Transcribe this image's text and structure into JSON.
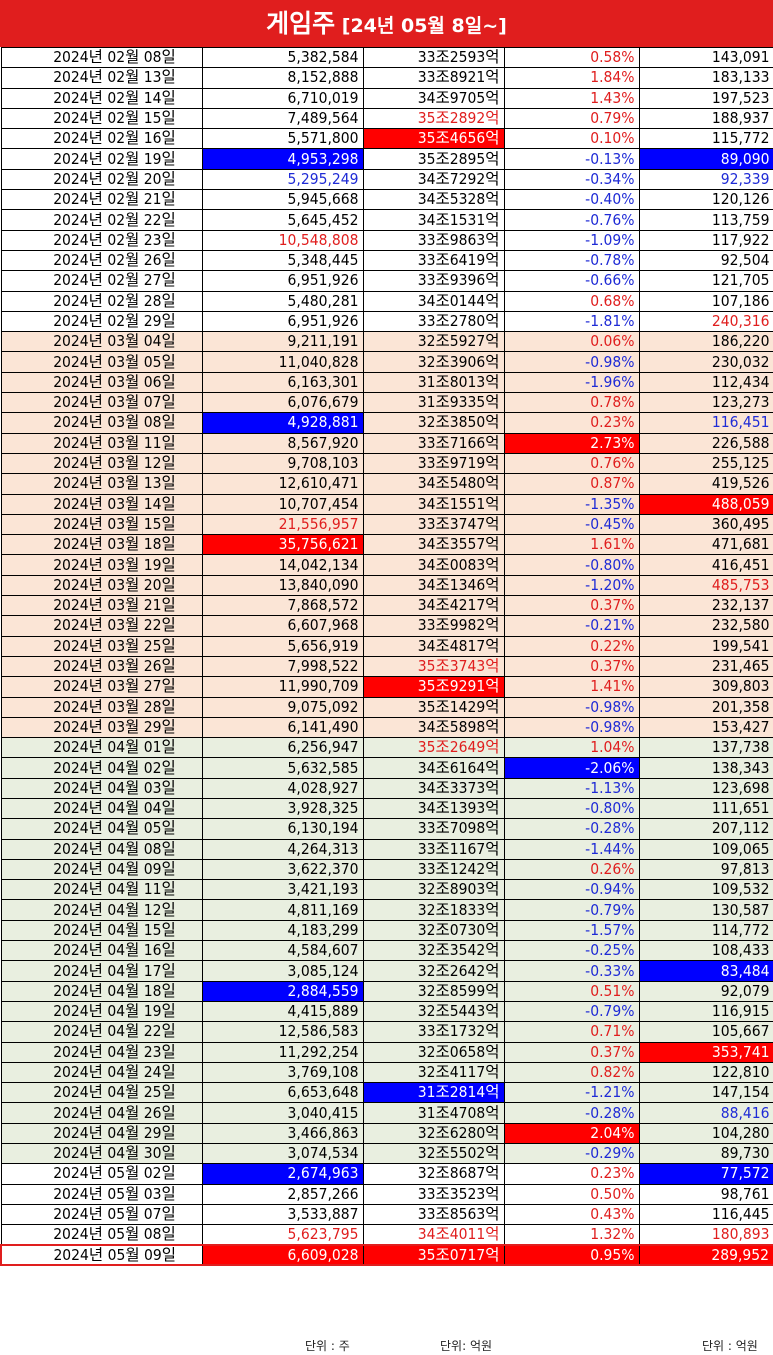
{
  "header": {
    "title_main": "게임주",
    "title_sub": " [24년 05월 8일~]"
  },
  "rows": [
    {
      "date": "2024년 02월 08일",
      "vol": "5,382,584",
      "cap": "33조2593억",
      "chg": "0.58%",
      "amt": "143,091",
      "m": "feb",
      "vc": "",
      "cc": "",
      "gc": "t-red",
      "ac": ""
    },
    {
      "date": "2024년 02월 13일",
      "vol": "8,152,888",
      "cap": "33조8921억",
      "chg": "1.84%",
      "amt": "183,133",
      "m": "feb",
      "vc": "",
      "cc": "",
      "gc": "t-red",
      "ac": ""
    },
    {
      "date": "2024년 02월 14일",
      "vol": "6,710,019",
      "cap": "34조9705억",
      "chg": "1.43%",
      "amt": "197,523",
      "m": "feb",
      "vc": "",
      "cc": "",
      "gc": "t-red",
      "ac": ""
    },
    {
      "date": "2024년 02월 15일",
      "vol": "7,489,564",
      "cap": "35조2892억",
      "chg": "0.79%",
      "amt": "188,937",
      "m": "feb",
      "vc": "",
      "cc": "t-red",
      "gc": "t-red",
      "ac": ""
    },
    {
      "date": "2024년 02월 16일",
      "vol": "5,571,800",
      "cap": "35조4656억",
      "chg": "0.10%",
      "amt": "115,772",
      "m": "feb",
      "vc": "",
      "cc": "bg-red",
      "gc": "t-red",
      "ac": ""
    },
    {
      "date": "2024년 02월 19일",
      "vol": "4,953,298",
      "cap": "35조2895억",
      "chg": "-0.13%",
      "amt": "89,090",
      "m": "feb",
      "vc": "bg-blue",
      "cc": "",
      "gc": "t-blue",
      "ac": "bg-blue"
    },
    {
      "date": "2024년 02월 20일",
      "vol": "5,295,249",
      "cap": "34조7292억",
      "chg": "-0.34%",
      "amt": "92,339",
      "m": "feb",
      "vc": "t-blue",
      "cc": "",
      "gc": "t-blue",
      "ac": "t-blue"
    },
    {
      "date": "2024년 02월 21일",
      "vol": "5,945,668",
      "cap": "34조5328억",
      "chg": "-0.40%",
      "amt": "120,126",
      "m": "feb",
      "vc": "",
      "cc": "",
      "gc": "t-blue",
      "ac": ""
    },
    {
      "date": "2024년 02월 22일",
      "vol": "5,645,452",
      "cap": "34조1531억",
      "chg": "-0.76%",
      "amt": "113,759",
      "m": "feb",
      "vc": "",
      "cc": "",
      "gc": "t-blue",
      "ac": ""
    },
    {
      "date": "2024년 02월 23일",
      "vol": "10,548,808",
      "cap": "33조9863억",
      "chg": "-1.09%",
      "amt": "117,922",
      "m": "feb",
      "vc": "t-red",
      "cc": "",
      "gc": "t-blue",
      "ac": ""
    },
    {
      "date": "2024년 02월 26일",
      "vol": "5,348,445",
      "cap": "33조6419억",
      "chg": "-0.78%",
      "amt": "92,504",
      "m": "feb",
      "vc": "",
      "cc": "",
      "gc": "t-blue",
      "ac": ""
    },
    {
      "date": "2024년 02월 27일",
      "vol": "6,951,926",
      "cap": "33조9396억",
      "chg": "-0.66%",
      "amt": "121,705",
      "m": "feb",
      "vc": "",
      "cc": "",
      "gc": "t-blue",
      "ac": ""
    },
    {
      "date": "2024년 02월 28일",
      "vol": "5,480,281",
      "cap": "34조0144억",
      "chg": "0.68%",
      "amt": "107,186",
      "m": "feb",
      "vc": "",
      "cc": "",
      "gc": "t-red",
      "ac": ""
    },
    {
      "date": "2024년 02월 29일",
      "vol": "6,951,926",
      "cap": "33조2780억",
      "chg": "-1.81%",
      "amt": "240,316",
      "m": "feb",
      "vc": "",
      "cc": "",
      "gc": "t-blue",
      "ac": "t-red"
    },
    {
      "date": "2024년 03월 04일",
      "vol": "9,211,191",
      "cap": "32조5927억",
      "chg": "0.06%",
      "amt": "186,220",
      "m": "mar",
      "vc": "",
      "cc": "",
      "gc": "t-red",
      "ac": ""
    },
    {
      "date": "2024년 03월 05일",
      "vol": "11,040,828",
      "cap": "32조3906억",
      "chg": "-0.98%",
      "amt": "230,032",
      "m": "mar",
      "vc": "",
      "cc": "",
      "gc": "t-blue",
      "ac": ""
    },
    {
      "date": "2024년 03월 06일",
      "vol": "6,163,301",
      "cap": "31조8013억",
      "chg": "-1.96%",
      "amt": "112,434",
      "m": "mar",
      "vc": "",
      "cc": "",
      "gc": "t-blue",
      "ac": ""
    },
    {
      "date": "2024년 03월 07일",
      "vol": "6,076,679",
      "cap": "31조9335억",
      "chg": "0.78%",
      "amt": "123,273",
      "m": "mar",
      "vc": "",
      "cc": "",
      "gc": "t-red",
      "ac": ""
    },
    {
      "date": "2024년 03월 08일",
      "vol": "4,928,881",
      "cap": "32조3850억",
      "chg": "0.23%",
      "amt": "116,451",
      "m": "mar",
      "vc": "bg-blue",
      "cc": "",
      "gc": "t-red",
      "ac": "t-blue"
    },
    {
      "date": "2024년 03월 11일",
      "vol": "8,567,920",
      "cap": "33조7166억",
      "chg": "2.73%",
      "amt": "226,588",
      "m": "mar",
      "vc": "",
      "cc": "",
      "gc": "bg-red",
      "ac": ""
    },
    {
      "date": "2024년 03월 12일",
      "vol": "9,708,103",
      "cap": "33조9719억",
      "chg": "0.76%",
      "amt": "255,125",
      "m": "mar",
      "vc": "",
      "cc": "",
      "gc": "t-red",
      "ac": ""
    },
    {
      "date": "2024년 03월 13일",
      "vol": "12,610,471",
      "cap": "34조5480억",
      "chg": "0.87%",
      "amt": "419,526",
      "m": "mar",
      "vc": "",
      "cc": "",
      "gc": "t-red",
      "ac": ""
    },
    {
      "date": "2024년 03월 14일",
      "vol": "10,707,454",
      "cap": "34조1551억",
      "chg": "-1.35%",
      "amt": "488,059",
      "m": "mar",
      "vc": "",
      "cc": "",
      "gc": "t-blue",
      "ac": "bg-red"
    },
    {
      "date": "2024년 03월 15일",
      "vol": "21,556,957",
      "cap": "33조3747억",
      "chg": "-0.45%",
      "amt": "360,495",
      "m": "mar",
      "vc": "t-red",
      "cc": "",
      "gc": "t-blue",
      "ac": ""
    },
    {
      "date": "2024년 03월 18일",
      "vol": "35,756,621",
      "cap": "34조3557억",
      "chg": "1.61%",
      "amt": "471,681",
      "m": "mar",
      "vc": "bg-red",
      "cc": "",
      "gc": "t-red",
      "ac": ""
    },
    {
      "date": "2024년 03월 19일",
      "vol": "14,042,134",
      "cap": "34조0083억",
      "chg": "-0.80%",
      "amt": "416,451",
      "m": "mar",
      "vc": "",
      "cc": "",
      "gc": "t-blue",
      "ac": ""
    },
    {
      "date": "2024년 03월 20일",
      "vol": "13,840,090",
      "cap": "34조1346억",
      "chg": "-1.20%",
      "amt": "485,753",
      "m": "mar",
      "vc": "",
      "cc": "",
      "gc": "t-blue",
      "ac": "t-red"
    },
    {
      "date": "2024년 03월 21일",
      "vol": "7,868,572",
      "cap": "34조4217억",
      "chg": "0.37%",
      "amt": "232,137",
      "m": "mar",
      "vc": "",
      "cc": "",
      "gc": "t-red",
      "ac": ""
    },
    {
      "date": "2024년 03월 22일",
      "vol": "6,607,968",
      "cap": "33조9982억",
      "chg": "-0.21%",
      "amt": "232,580",
      "m": "mar",
      "vc": "",
      "cc": "",
      "gc": "t-blue",
      "ac": ""
    },
    {
      "date": "2024년 03월 25일",
      "vol": "5,656,919",
      "cap": "34조4817억",
      "chg": "0.22%",
      "amt": "199,541",
      "m": "mar",
      "vc": "",
      "cc": "",
      "gc": "t-red",
      "ac": ""
    },
    {
      "date": "2024년 03월 26일",
      "vol": "7,998,522",
      "cap": "35조3743억",
      "chg": "0.37%",
      "amt": "231,465",
      "m": "mar",
      "vc": "",
      "cc": "t-red",
      "gc": "t-red",
      "ac": ""
    },
    {
      "date": "2024년 03월 27일",
      "vol": "11,990,709",
      "cap": "35조9291억",
      "chg": "1.41%",
      "amt": "309,803",
      "m": "mar",
      "vc": "",
      "cc": "bg-red",
      "gc": "t-red",
      "ac": ""
    },
    {
      "date": "2024년 03월 28일",
      "vol": "9,075,092",
      "cap": "35조1429억",
      "chg": "-0.98%",
      "amt": "201,358",
      "m": "mar",
      "vc": "",
      "cc": "",
      "gc": "t-blue",
      "ac": ""
    },
    {
      "date": "2024년 03월 29일",
      "vol": "6,141,490",
      "cap": "34조5898억",
      "chg": "-0.98%",
      "amt": "153,427",
      "m": "mar",
      "vc": "",
      "cc": "",
      "gc": "t-blue",
      "ac": ""
    },
    {
      "date": "2024년 04월 01일",
      "vol": "6,256,947",
      "cap": "35조2649억",
      "chg": "1.04%",
      "amt": "137,738",
      "m": "apr",
      "vc": "",
      "cc": "t-red",
      "gc": "t-red",
      "ac": ""
    },
    {
      "date": "2024년 04월 02일",
      "vol": "5,632,585",
      "cap": "34조6164억",
      "chg": "-2.06%",
      "amt": "138,343",
      "m": "apr",
      "vc": "",
      "cc": "",
      "gc": "bg-blue",
      "ac": ""
    },
    {
      "date": "2024년 04월 03일",
      "vol": "4,028,927",
      "cap": "34조3373억",
      "chg": "-1.13%",
      "amt": "123,698",
      "m": "apr",
      "vc": "",
      "cc": "",
      "gc": "t-blue",
      "ac": ""
    },
    {
      "date": "2024년 04월 04일",
      "vol": "3,928,325",
      "cap": "34조1393억",
      "chg": "-0.80%",
      "amt": "111,651",
      "m": "apr",
      "vc": "",
      "cc": "",
      "gc": "t-blue",
      "ac": ""
    },
    {
      "date": "2024년 04월 05일",
      "vol": "6,130,194",
      "cap": "33조7098억",
      "chg": "-0.28%",
      "amt": "207,112",
      "m": "apr",
      "vc": "",
      "cc": "",
      "gc": "t-blue",
      "ac": ""
    },
    {
      "date": "2024년 04월 08일",
      "vol": "4,264,313",
      "cap": "33조1167억",
      "chg": "-1.44%",
      "amt": "109,065",
      "m": "apr",
      "vc": "",
      "cc": "",
      "gc": "t-blue",
      "ac": ""
    },
    {
      "date": "2024년 04월 09일",
      "vol": "3,622,370",
      "cap": "33조1242억",
      "chg": "0.26%",
      "amt": "97,813",
      "m": "apr",
      "vc": "",
      "cc": "",
      "gc": "t-red",
      "ac": ""
    },
    {
      "date": "2024년 04월 11일",
      "vol": "3,421,193",
      "cap": "32조8903억",
      "chg": "-0.94%",
      "amt": "109,532",
      "m": "apr",
      "vc": "",
      "cc": "",
      "gc": "t-blue",
      "ac": ""
    },
    {
      "date": "2024년 04월 12일",
      "vol": "4,811,169",
      "cap": "32조1833억",
      "chg": "-0.79%",
      "amt": "130,587",
      "m": "apr",
      "vc": "",
      "cc": "",
      "gc": "t-blue",
      "ac": ""
    },
    {
      "date": "2024년 04월 15일",
      "vol": "4,183,299",
      "cap": "32조0730억",
      "chg": "-1.57%",
      "amt": "114,772",
      "m": "apr",
      "vc": "",
      "cc": "",
      "gc": "t-blue",
      "ac": ""
    },
    {
      "date": "2024년 04월 16일",
      "vol": "4,584,607",
      "cap": "32조3542억",
      "chg": "-0.25%",
      "amt": "108,433",
      "m": "apr",
      "vc": "",
      "cc": "",
      "gc": "t-blue",
      "ac": ""
    },
    {
      "date": "2024년 04월 17일",
      "vol": "3,085,124",
      "cap": "32조2642억",
      "chg": "-0.33%",
      "amt": "83,484",
      "m": "apr",
      "vc": "",
      "cc": "",
      "gc": "t-blue",
      "ac": "bg-blue"
    },
    {
      "date": "2024년 04월 18일",
      "vol": "2,884,559",
      "cap": "32조8599억",
      "chg": "0.51%",
      "amt": "92,079",
      "m": "apr",
      "vc": "bg-blue",
      "cc": "",
      "gc": "t-red",
      "ac": ""
    },
    {
      "date": "2024년 04월 19일",
      "vol": "4,415,889",
      "cap": "32조5443억",
      "chg": "-0.79%",
      "amt": "116,915",
      "m": "apr",
      "vc": "",
      "cc": "",
      "gc": "t-blue",
      "ac": ""
    },
    {
      "date": "2024년 04월 22일",
      "vol": "12,586,583",
      "cap": "33조1732억",
      "chg": "0.71%",
      "amt": "105,667",
      "m": "apr",
      "vc": "",
      "cc": "",
      "gc": "t-red",
      "ac": ""
    },
    {
      "date": "2024년 04월 23일",
      "vol": "11,292,254",
      "cap": "32조0658억",
      "chg": "0.37%",
      "amt": "353,741",
      "m": "apr",
      "vc": "",
      "cc": "",
      "gc": "t-red",
      "ac": "bg-red"
    },
    {
      "date": "2024년 04월 24일",
      "vol": "3,769,108",
      "cap": "32조4117억",
      "chg": "0.82%",
      "amt": "122,810",
      "m": "apr",
      "vc": "",
      "cc": "",
      "gc": "t-red",
      "ac": ""
    },
    {
      "date": "2024년 04월 25일",
      "vol": "6,653,648",
      "cap": "31조2814억",
      "chg": "-1.21%",
      "amt": "147,154",
      "m": "apr",
      "vc": "",
      "cc": "bg-blue",
      "gc": "t-blue",
      "ac": ""
    },
    {
      "date": "2024년 04월 26일",
      "vol": "3,040,415",
      "cap": "31조4708억",
      "chg": "-0.28%",
      "amt": "88,416",
      "m": "apr",
      "vc": "",
      "cc": "",
      "gc": "t-blue",
      "ac": "t-blue"
    },
    {
      "date": "2024년 04월 29일",
      "vol": "3,466,863",
      "cap": "32조6280억",
      "chg": "2.04%",
      "amt": "104,280",
      "m": "apr",
      "vc": "",
      "cc": "",
      "gc": "bg-red",
      "ac": ""
    },
    {
      "date": "2024년 04월 30일",
      "vol": "3,074,534",
      "cap": "32조5502억",
      "chg": "-0.29%",
      "amt": "89,730",
      "m": "apr",
      "vc": "",
      "cc": "",
      "gc": "t-blue",
      "ac": ""
    },
    {
      "date": "2024년 05월 02일",
      "vol": "2,674,963",
      "cap": "32조8687억",
      "chg": "0.23%",
      "amt": "77,572",
      "m": "may",
      "vc": "bg-blue",
      "cc": "",
      "gc": "t-red",
      "ac": "bg-blue"
    },
    {
      "date": "2024년 05월 03일",
      "vol": "2,857,266",
      "cap": "33조3523억",
      "chg": "0.50%",
      "amt": "98,761",
      "m": "may",
      "vc": "",
      "cc": "",
      "gc": "t-red",
      "ac": ""
    },
    {
      "date": "2024년 05월 07일",
      "vol": "3,533,887",
      "cap": "33조8563억",
      "chg": "0.43%",
      "amt": "116,445",
      "m": "may",
      "vc": "",
      "cc": "",
      "gc": "t-red",
      "ac": ""
    },
    {
      "date": "2024년 05월 08일",
      "vol": "5,623,795",
      "cap": "34조4011억",
      "chg": "1.32%",
      "amt": "180,893",
      "m": "may",
      "vc": "t-red",
      "cc": "t-red",
      "gc": "t-red",
      "ac": "t-red"
    },
    {
      "date": "2024년 05월 09일",
      "vol": "6,609,028",
      "cap": "35조0717억",
      "chg": "0.95%",
      "amt": "289,952",
      "m": "may",
      "vc": "bg-red",
      "cc": "bg-red",
      "gc": "bg-red",
      "ac": "bg-red"
    }
  ],
  "footer": {
    "unit_shares": "단위 : 주",
    "unit_cap": "단위: 억원",
    "unit_amount": "단위 : 억원"
  }
}
